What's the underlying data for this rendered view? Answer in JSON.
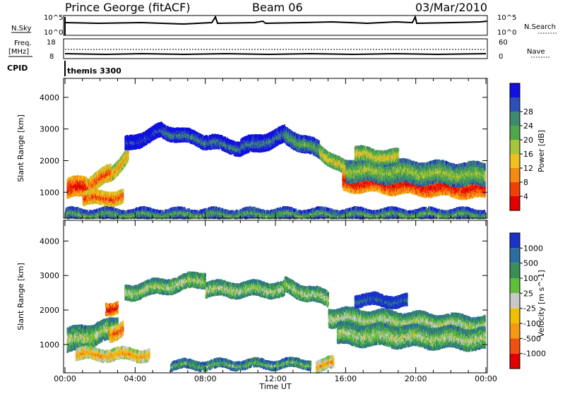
{
  "header": {
    "station": "Prince George (fitACF)",
    "beam": "Beam 06",
    "date": "03/Mar/2010"
  },
  "summary_panels": {
    "nsky": {
      "left_label": "N.Sky",
      "left_ticks": [
        "10^5",
        "10^0"
      ],
      "right_ticks": [
        "10^5",
        "10^0"
      ],
      "right_label": "N.Search"
    },
    "freq": {
      "left_label_line1": "Freq.",
      "left_label_line2": "[MHz]",
      "left_ticks": [
        "18",
        "8"
      ],
      "right_ticks": [
        "60",
        "0"
      ],
      "right_label": "Nave"
    },
    "cpid": {
      "label": "CPID",
      "program": "themis 3300"
    }
  },
  "chart_data": [
    {
      "type": "heatmap",
      "name": "power",
      "ylabel": "Slant Range [km]",
      "ylim": [
        180,
        4600
      ],
      "yticks": [
        "1000",
        "2000",
        "3000",
        "4000"
      ],
      "xlim_hours": [
        0,
        24
      ],
      "colorbar": {
        "label": "Power [dB]",
        "ticks": [
          "4",
          "8",
          "12",
          "16",
          "20",
          "24",
          "28"
        ],
        "colors": [
          "#1010e0",
          "#2e4fb4",
          "#3d8a6e",
          "#4fa84a",
          "#a6c53a",
          "#f0c020",
          "#f58a10",
          "#f04008",
          "#e00000"
        ]
      },
      "bands": [
        {
          "start": 0.1,
          "end": 1.2,
          "center_start": 1100,
          "center_end": 1200,
          "width": 260,
          "level": 8
        },
        {
          "start": 1.2,
          "end": 2.6,
          "center_start": 1200,
          "center_end": 1600,
          "width": 220,
          "level": 7
        },
        {
          "start": 2.6,
          "end": 3.6,
          "center_start": 1600,
          "center_end": 2200,
          "width": 200,
          "level": 6
        },
        {
          "start": 1.0,
          "end": 3.3,
          "center_start": 800,
          "center_end": 850,
          "width": 180,
          "level": 7
        },
        {
          "start": 3.4,
          "end": 5.5,
          "center_start": 2500,
          "center_end": 2950,
          "width": 160,
          "level": 1
        },
        {
          "start": 5.5,
          "end": 8.0,
          "center_start": 2950,
          "center_end": 2600,
          "width": 200,
          "level": 2
        },
        {
          "start": 8.0,
          "end": 10.0,
          "center_start": 2600,
          "center_end": 2400,
          "width": 170,
          "level": 2
        },
        {
          "start": 10.0,
          "end": 12.5,
          "center_start": 2400,
          "center_end": 2800,
          "width": 220,
          "level": 2
        },
        {
          "start": 12.5,
          "end": 14.5,
          "center_start": 2800,
          "center_end": 2300,
          "width": 220,
          "level": 3
        },
        {
          "start": 14.5,
          "end": 16.0,
          "center_start": 2300,
          "center_end": 1700,
          "width": 200,
          "level": 5
        },
        {
          "start": 15.8,
          "end": 24.0,
          "center_start": 1350,
          "center_end": 1100,
          "width": 260,
          "level": 8
        },
        {
          "start": 16.0,
          "end": 24.0,
          "center_start": 1700,
          "center_end": 1550,
          "width": 300,
          "level": 4
        },
        {
          "start": 16.5,
          "end": 19.0,
          "center_start": 2200,
          "center_end": 2100,
          "width": 200,
          "level": 5
        },
        {
          "start": 0.0,
          "end": 24.0,
          "center_start": 300,
          "center_end": 300,
          "width": 120,
          "level": 3
        }
      ]
    },
    {
      "type": "heatmap",
      "name": "velocity",
      "ylabel": "Slant Range [km]",
      "ylim": [
        180,
        4600
      ],
      "yticks": [
        "1000",
        "2000",
        "3000",
        "4000"
      ],
      "xlim_hours": [
        0,
        24
      ],
      "xticks": [
        "00:00",
        "04:00",
        "08:00",
        "12:00",
        "16:00",
        "20:00",
        "00:00"
      ],
      "xlabel": "Time UT",
      "colorbar": {
        "label": "Velocity [m s^-1]",
        "ticks": [
          "1000",
          "500",
          "100",
          "25",
          "-25",
          "-100",
          "-500",
          "-1000"
        ],
        "colors": [
          "#1a32c8",
          "#2a6e9e",
          "#3a8e58",
          "#5fbf3a",
          "#c8c8c8",
          "#f0c000",
          "#f59a10",
          "#f05010",
          "#e00000"
        ]
      },
      "bands": [
        {
          "start": 0.1,
          "end": 1.5,
          "center_start": 1100,
          "center_end": 1250,
          "width": 320,
          "level": 4
        },
        {
          "start": 1.5,
          "end": 3.0,
          "center_start": 1250,
          "center_end": 1500,
          "width": 280,
          "level": 4
        },
        {
          "start": 2.5,
          "end": 3.3,
          "center_start": 1300,
          "center_end": 1500,
          "width": 180,
          "level": 7
        },
        {
          "start": 2.3,
          "end": 3.0,
          "center_start": 2050,
          "center_end": 2100,
          "width": 150,
          "level": 8
        },
        {
          "start": 0.6,
          "end": 4.8,
          "center_start": 720,
          "center_end": 700,
          "width": 120,
          "level": 6
        },
        {
          "start": 3.4,
          "end": 8.0,
          "center_start": 2500,
          "center_end": 2900,
          "width": 180,
          "level": 4
        },
        {
          "start": 8.0,
          "end": 12.5,
          "center_start": 2600,
          "center_end": 2600,
          "width": 200,
          "level": 4
        },
        {
          "start": 12.5,
          "end": 15.0,
          "center_start": 2700,
          "center_end": 2300,
          "width": 200,
          "level": 4
        },
        {
          "start": 15.0,
          "end": 24.0,
          "center_start": 1800,
          "center_end": 1550,
          "width": 240,
          "level": 4
        },
        {
          "start": 15.5,
          "end": 24.0,
          "center_start": 1300,
          "center_end": 1150,
          "width": 280,
          "level": 4
        },
        {
          "start": 16.5,
          "end": 19.5,
          "center_start": 2300,
          "center_end": 2250,
          "width": 150,
          "level": 1
        },
        {
          "start": 14.3,
          "end": 15.3,
          "center_start": 400,
          "center_end": 450,
          "width": 120,
          "level": 6
        },
        {
          "start": 6.0,
          "end": 14.0,
          "center_start": 400,
          "center_end": 450,
          "width": 100,
          "level": 3
        }
      ]
    }
  ]
}
